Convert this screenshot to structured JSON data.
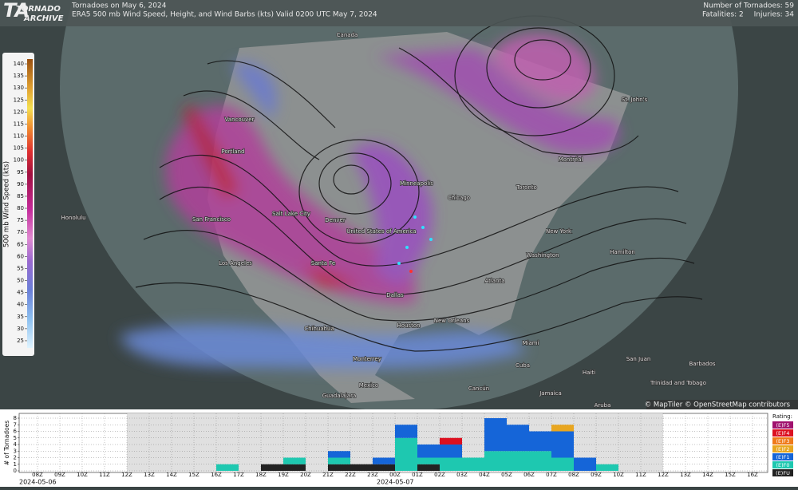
{
  "header": {
    "logo_top": "TORNADO",
    "logo_bottom": "ARCHIVE",
    "title": "Tornadoes on May 6, 2024",
    "subtitle": "ERA5 500 mb Wind Speed, Height, and Wind Barbs (kts) Valid 0200 UTC May 7, 2024",
    "tornado_count": "Number of Tornadoes: 59",
    "fatalities": "Fatalities: 2",
    "injuries": "Injuries: 34"
  },
  "colorbar": {
    "label": "500 mb Wind Speed (kts)",
    "lim": [
      22,
      142
    ],
    "ticks": [
      25,
      30,
      35,
      40,
      45,
      50,
      55,
      60,
      65,
      70,
      75,
      80,
      85,
      90,
      95,
      100,
      105,
      110,
      115,
      120,
      125,
      130,
      135,
      140
    ]
  },
  "map_labels": [
    "Canada",
    "Honolulu",
    "Vancouver",
    "Portland",
    "San Francisco",
    "Los Angeles",
    "Salt Lake City",
    "Denver",
    "Santa Fe",
    "Chihuahua",
    "Monterrey",
    "Mexico",
    "Guadalajara",
    "Dallas",
    "Houston",
    "New Orleans",
    "Atlanta",
    "Chicago",
    "Minneapolis",
    "United States of America",
    "Toronto",
    "Montréal",
    "New York",
    "Washington",
    "Miami",
    "Cuba",
    "Haiti",
    "San Juan",
    "Jamaica",
    "Barbados",
    "Trinidad and Tobago",
    "Aruba",
    "Cancún",
    "St. John's",
    "Hamilton"
  ],
  "attribution": "© MapTiler © OpenStreetMap contributors",
  "chart_data": {
    "type": "bar",
    "stacked": true,
    "y_label": "# of Tornadoes",
    "legend_title": "Rating:",
    "date_labels": [
      "2024-05-06",
      "2024-05-07"
    ],
    "categories": [
      "08Z",
      "09Z",
      "10Z",
      "11Z",
      "12Z",
      "13Z",
      "14Z",
      "15Z",
      "16Z",
      "17Z",
      "18Z",
      "19Z",
      "20Z",
      "21Z",
      "22Z",
      "23Z",
      "00Z",
      "01Z",
      "02Z",
      "03Z",
      "04Z",
      "05Z",
      "06Z",
      "07Z",
      "08Z",
      "09Z",
      "10Z",
      "11Z",
      "12Z",
      "13Z",
      "14Z",
      "15Z",
      "16Z"
    ],
    "ylim": [
      0,
      8
    ],
    "yticks": [
      0,
      1,
      2,
      3,
      4,
      5,
      6,
      7,
      8
    ],
    "grid": true,
    "series": [
      {
        "name": "(E)FU",
        "color": "#222222",
        "values": [
          0,
          0,
          0,
          0,
          0,
          0,
          0,
          0,
          0,
          0,
          1,
          1,
          0,
          1,
          1,
          1,
          0,
          1,
          0,
          0,
          0,
          0,
          0,
          0,
          0,
          0,
          0,
          0,
          0,
          0,
          0,
          0,
          0
        ]
      },
      {
        "name": "(E)F0",
        "color": "#1ec8b0",
        "values": [
          0,
          0,
          0,
          0,
          0,
          0,
          0,
          0,
          1,
          0,
          0,
          1,
          0,
          1,
          0,
          0,
          5,
          1,
          2,
          2,
          3,
          3,
          3,
          2,
          0,
          1,
          0,
          0,
          0,
          0,
          0,
          0,
          0
        ]
      },
      {
        "name": "(E)F1",
        "color": "#1565d8",
        "values": [
          0,
          0,
          0,
          0,
          0,
          0,
          0,
          0,
          0,
          0,
          0,
          0,
          0,
          1,
          0,
          1,
          2,
          2,
          2,
          0,
          5,
          4,
          3,
          4,
          2,
          0,
          0,
          0,
          0,
          0,
          0,
          0,
          0
        ]
      },
      {
        "name": "(E)F2",
        "color": "#e8a620",
        "values": [
          0,
          0,
          0,
          0,
          0,
          0,
          0,
          0,
          0,
          0,
          0,
          0,
          0,
          0,
          0,
          0,
          0,
          0,
          0,
          0,
          0,
          0,
          0,
          1,
          0,
          0,
          0,
          0,
          0,
          0,
          0,
          0,
          0
        ]
      },
      {
        "name": "(E)F3",
        "color": "#ef7a1a",
        "values": [
          0,
          0,
          0,
          0,
          0,
          0,
          0,
          0,
          0,
          0,
          0,
          0,
          0,
          0,
          0,
          0,
          0,
          0,
          0,
          0,
          0,
          0,
          0,
          0,
          0,
          0,
          0,
          0,
          0,
          0,
          0,
          0,
          0
        ]
      },
      {
        "name": "(E)F4",
        "color": "#dc1020",
        "values": [
          0,
          0,
          0,
          0,
          0,
          0,
          0,
          0,
          0,
          0,
          0,
          0,
          0,
          0,
          0,
          0,
          0,
          0,
          1,
          0,
          0,
          0,
          0,
          0,
          0,
          0,
          0,
          0,
          0,
          0,
          0,
          0,
          0
        ]
      },
      {
        "name": "(E)F5",
        "color": "#a0116e",
        "values": [
          0,
          0,
          0,
          0,
          0,
          0,
          0,
          0,
          0,
          0,
          0,
          0,
          0,
          0,
          0,
          0,
          0,
          0,
          0,
          0,
          0,
          0,
          0,
          0,
          0,
          0,
          0,
          0,
          0,
          0,
          0,
          0,
          0
        ]
      }
    ]
  }
}
